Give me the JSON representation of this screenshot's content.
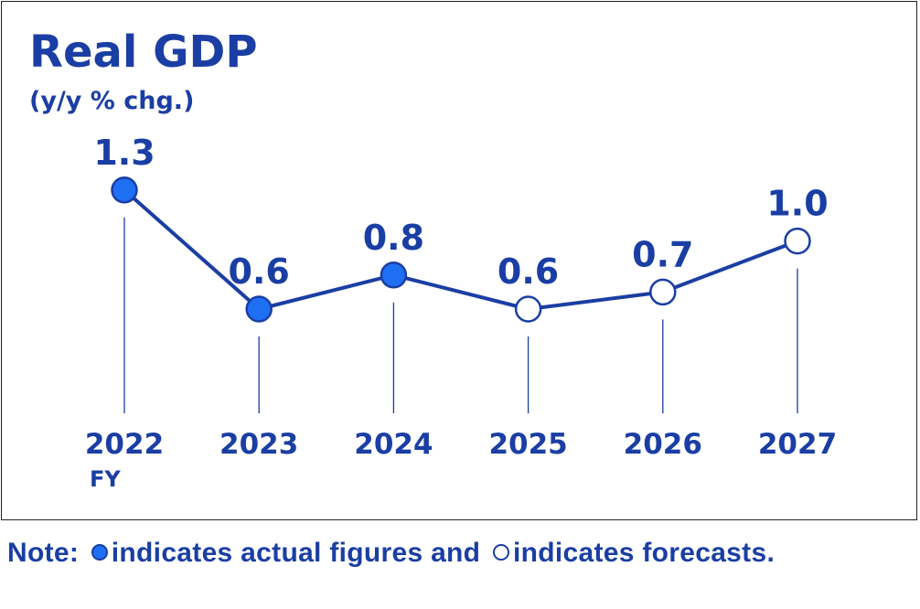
{
  "colors": {
    "primary": "#1a3ea3",
    "actual_fill": "#1f6ff2",
    "forecast_fill": "#ffffff",
    "frame": "#222222"
  },
  "chart_data": {
    "type": "line",
    "title": "Real GDP",
    "ylabel": "(y/y % chg.)",
    "categories": [
      "2022",
      "2023",
      "2024",
      "2025",
      "2026",
      "2027"
    ],
    "x_axis_suffix": "FY",
    "values": [
      1.3,
      0.6,
      0.8,
      0.6,
      0.7,
      1.0
    ],
    "value_labels": [
      "1.3",
      "0.6",
      "0.8",
      "0.6",
      "0.7",
      "1.0"
    ],
    "point_status": [
      "actual",
      "actual",
      "actual",
      "forecast",
      "forecast",
      "forecast"
    ],
    "ylim": [
      0.0,
      1.5
    ],
    "grid": false,
    "legend": "none"
  },
  "note": {
    "prefix": "Note:",
    "actual_text": "indicates actual figures and",
    "forecast_text": "indicates forecasts."
  }
}
